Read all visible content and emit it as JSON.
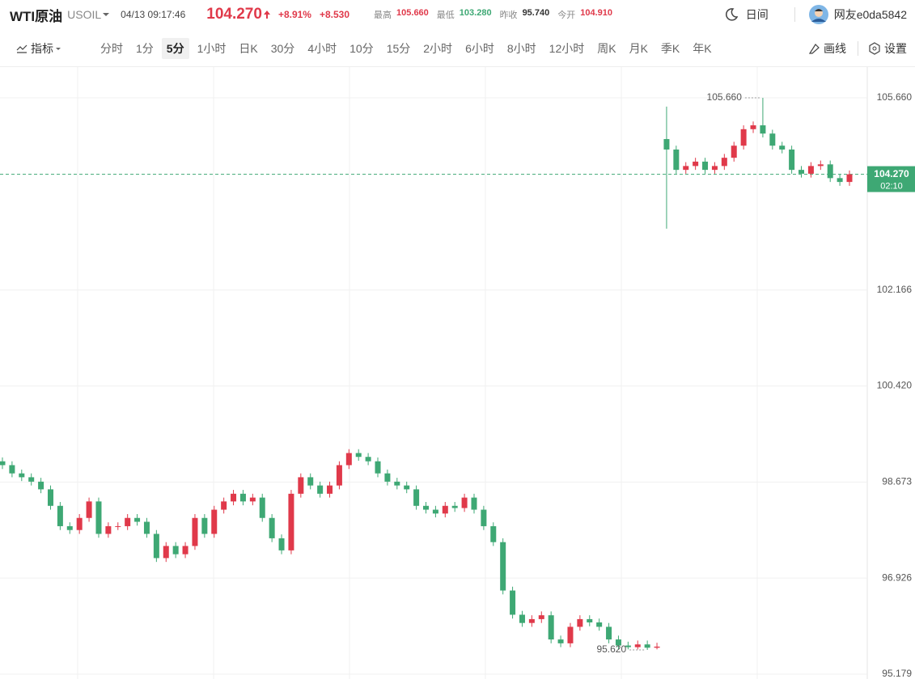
{
  "header": {
    "name": "WTI原油",
    "symbol": "USOIL",
    "time": "04/13 09:17:46",
    "price": "104.270",
    "change_pct": "+8.91%",
    "change": "+8.530",
    "stats": [
      {
        "label": "最高",
        "value": "105.660"
      },
      {
        "label": "最低",
        "value": "103.280"
      },
      {
        "label": "昨收",
        "value": "95.740"
      },
      {
        "label": "今开",
        "value": "104.910"
      }
    ],
    "mode": "日间",
    "user": "网友e0da5842"
  },
  "toolbar": {
    "indicator": "指标",
    "periods": [
      "分时",
      "1分",
      "5分",
      "1小时",
      "日K",
      "30分",
      "4小时",
      "10分",
      "15分",
      "2小时",
      "6小时",
      "8小时",
      "12小时",
      "周K",
      "月K",
      "季K",
      "年K"
    ],
    "selected_period": 2,
    "draw": "画线",
    "settings": "设置"
  },
  "chart_data": {
    "type": "candlestick",
    "up_color": "#e0394a",
    "down_color": "#3ea874",
    "grid": true,
    "open": [
      99.05,
      98.98,
      98.83,
      98.76,
      98.68,
      98.54,
      98.24,
      97.87,
      97.8,
      98.02,
      98.32,
      97.73,
      97.87,
      97.87,
      98.02,
      97.95,
      97.73,
      97.29,
      97.51,
      97.36,
      97.51,
      98.02,
      97.73,
      98.17,
      98.32,
      98.46,
      98.32,
      98.39,
      98.02,
      97.65,
      97.43,
      98.46,
      98.76,
      98.61,
      98.46,
      98.61,
      98.98,
      99.2,
      99.13,
      99.05,
      98.83,
      98.68,
      98.61,
      98.54,
      98.24,
      98.17,
      98.1,
      98.24,
      98.2,
      98.39,
      98.17,
      97.87,
      97.58,
      96.7,
      96.26,
      96.11,
      96.18,
      96.25,
      95.81,
      95.74,
      96.04,
      96.18,
      96.12,
      96.04,
      95.81,
      95.7,
      95.67,
      95.72,
      95.66,
      104.91,
      104.72,
      104.35,
      104.42,
      104.5,
      104.35,
      104.42,
      104.57,
      104.79,
      105.09,
      105.16,
      105.01,
      104.79,
      104.72,
      104.35,
      104.28,
      104.42,
      104.45,
      104.2,
      104.13
    ],
    "high": [
      99.12,
      99.05,
      98.9,
      98.83,
      98.75,
      98.61,
      98.31,
      97.94,
      98.09,
      98.39,
      98.39,
      97.94,
      97.94,
      98.09,
      98.09,
      98.02,
      97.8,
      97.58,
      97.58,
      97.58,
      98.09,
      98.09,
      98.24,
      98.39,
      98.53,
      98.53,
      98.46,
      98.46,
      98.09,
      97.72,
      98.53,
      98.83,
      98.83,
      98.68,
      98.68,
      99.05,
      99.27,
      99.27,
      99.2,
      99.12,
      98.9,
      98.75,
      98.68,
      98.61,
      98.31,
      98.24,
      98.31,
      98.31,
      98.46,
      98.46,
      98.24,
      97.94,
      97.65,
      96.77,
      96.33,
      96.25,
      96.32,
      96.32,
      95.88,
      96.11,
      96.25,
      96.25,
      96.19,
      96.11,
      95.88,
      95.77,
      95.79,
      95.79,
      95.75,
      105.5,
      104.79,
      104.49,
      104.57,
      104.57,
      104.49,
      104.64,
      104.86,
      105.16,
      105.23,
      105.66,
      105.08,
      104.86,
      104.79,
      104.42,
      104.49,
      104.52,
      104.52,
      104.27,
      104.34
    ],
    "low": [
      98.91,
      98.76,
      98.69,
      98.61,
      98.47,
      98.17,
      97.8,
      97.73,
      97.73,
      97.95,
      97.66,
      97.66,
      97.8,
      97.8,
      97.88,
      97.66,
      97.22,
      97.22,
      97.29,
      97.29,
      97.44,
      97.66,
      97.66,
      98.1,
      98.25,
      98.25,
      98.25,
      97.95,
      97.58,
      97.36,
      97.36,
      98.39,
      98.54,
      98.39,
      98.39,
      98.54,
      98.91,
      99.06,
      98.98,
      98.76,
      98.61,
      98.54,
      98.47,
      98.17,
      98.1,
      98.03,
      98.03,
      98.13,
      98.13,
      98.1,
      97.8,
      97.51,
      96.63,
      96.19,
      96.04,
      96.04,
      96.11,
      95.74,
      95.67,
      95.67,
      95.97,
      96.05,
      95.97,
      95.74,
      95.63,
      95.63,
      95.63,
      95.62,
      95.63,
      103.28,
      104.28,
      104.28,
      104.35,
      104.28,
      104.28,
      104.35,
      104.5,
      104.72,
      105.02,
      104.94,
      104.72,
      104.65,
      104.28,
      104.21,
      104.21,
      104.35,
      104.13,
      104.06,
      104.06
    ],
    "close": [
      98.98,
      98.83,
      98.76,
      98.68,
      98.54,
      98.24,
      97.87,
      97.8,
      98.02,
      98.32,
      97.73,
      97.87,
      97.87,
      98.02,
      97.95,
      97.73,
      97.29,
      97.51,
      97.36,
      97.51,
      98.02,
      97.73,
      98.17,
      98.32,
      98.46,
      98.32,
      98.39,
      98.02,
      97.65,
      97.43,
      98.46,
      98.76,
      98.61,
      98.46,
      98.61,
      98.98,
      99.2,
      99.13,
      99.05,
      98.83,
      98.68,
      98.61,
      98.54,
      98.24,
      98.17,
      98.1,
      98.24,
      98.2,
      98.39,
      98.17,
      97.87,
      97.58,
      96.7,
      96.26,
      96.11,
      96.18,
      96.25,
      95.81,
      95.74,
      96.04,
      96.18,
      96.12,
      96.04,
      95.81,
      95.7,
      95.67,
      95.72,
      95.66,
      95.68,
      104.72,
      104.35,
      104.42,
      104.5,
      104.35,
      104.42,
      104.57,
      104.79,
      105.09,
      105.16,
      105.01,
      104.79,
      104.72,
      104.35,
      104.28,
      104.42,
      104.45,
      104.2,
      104.13,
      104.27
    ],
    "ylim": [
      95.091,
      106.219
    ],
    "yticks": [
      {
        "value": 105.66,
        "label": "105.660"
      },
      102.166,
      {
        "value": 100.42,
        "label": "100.420"
      },
      98.673,
      96.926,
      95.179
    ],
    "max_marker": {
      "value": 105.66,
      "label": "105.660",
      "index": 79
    },
    "min_marker": {
      "value": 95.62,
      "label": "95.620",
      "index": 67
    },
    "last_price": {
      "value": 104.27,
      "label": "104.270",
      "countdown": "02:10"
    }
  }
}
